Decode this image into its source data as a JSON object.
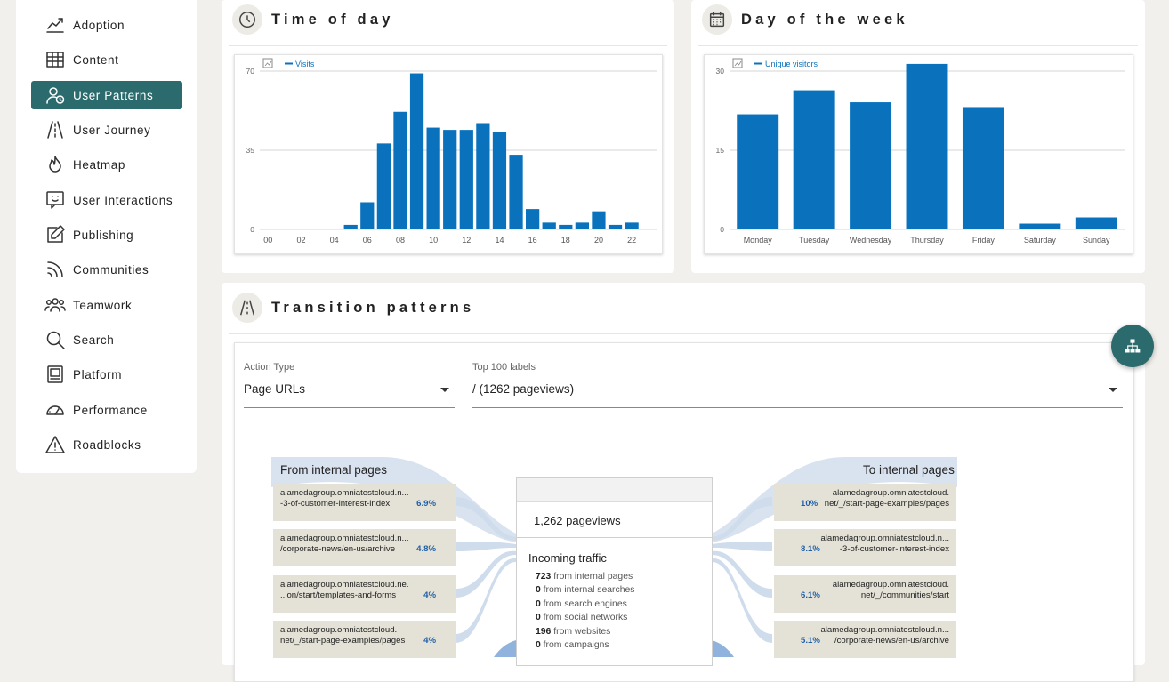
{
  "sidebar": {
    "items": [
      {
        "label": "Adoption",
        "icon": "trending-chart-icon",
        "active": false
      },
      {
        "label": "Content",
        "icon": "table-grid-icon",
        "active": false
      },
      {
        "label": "User Patterns",
        "icon": "user-clock-icon",
        "active": true
      },
      {
        "label": "User Journey",
        "icon": "road-icon",
        "active": false
      },
      {
        "label": "Heatmap",
        "icon": "flame-icon",
        "active": false
      },
      {
        "label": "User Interactions",
        "icon": "chat-smile-icon",
        "active": false
      },
      {
        "label": "Publishing",
        "icon": "edit-icon",
        "active": false
      },
      {
        "label": "Communities",
        "icon": "rss-icon",
        "active": false
      },
      {
        "label": "Teamwork",
        "icon": "people-group-icon",
        "active": false
      },
      {
        "label": "Search",
        "icon": "search-icon",
        "active": false
      },
      {
        "label": "Platform",
        "icon": "server-icon",
        "active": false
      },
      {
        "label": "Performance",
        "icon": "gauge-icon",
        "active": false
      },
      {
        "label": "Roadblocks",
        "icon": "warning-icon",
        "active": false
      }
    ]
  },
  "time_of_day": {
    "title": "Time of day",
    "icon": "clock-icon"
  },
  "day_of_week": {
    "title": "Day of the week",
    "icon": "calendar-icon"
  },
  "transition": {
    "title": "Transition patterns",
    "icon": "road-icon",
    "action_type_label": "Action Type",
    "action_type_value": "Page URLs",
    "labels_label": "Top 100 labels",
    "labels_value": "/ (1262 pageviews)",
    "from_title": "From internal pages",
    "to_title": "To internal pages",
    "from_items": [
      {
        "line1": "alamedagroup.omniatestcloud.n...",
        "line2": "-3-of-customer-interest-index",
        "pct": "6.9%"
      },
      {
        "line1": "alamedagroup.omniatestcloud.n...",
        "line2": "/corporate-news/en-us/archive",
        "pct": "4.8%"
      },
      {
        "line1": "alamedagroup.omniatestcloud.ne.",
        "line2": "..ion/start/templates-and-forms",
        "pct": "4%"
      },
      {
        "line1": "alamedagroup.omniatestcloud.",
        "line2": "net/_/start-page-examples/pages",
        "pct": "4%"
      }
    ],
    "to_items": [
      {
        "line1": "alamedagroup.omniatestcloud.",
        "line2": "net/_/start-page-examples/pages",
        "pct": "10%"
      },
      {
        "line1": "alamedagroup.omniatestcloud.n...",
        "line2": "-3-of-customer-interest-index",
        "pct": "8.1%"
      },
      {
        "line1": "alamedagroup.omniatestcloud.",
        "line2": "net/_/communities/start",
        "pct": "6.1%"
      },
      {
        "line1": "alamedagroup.omniatestcloud.n...",
        "line2": "/corporate-news/en-us/archive",
        "pct": "5.1%"
      }
    ],
    "pageviews": "1,262 pageviews",
    "incoming_title": "Incoming traffic",
    "incoming": [
      {
        "count": "723",
        "text": "from internal pages"
      },
      {
        "count": "0",
        "text": "from internal searches"
      },
      {
        "count": "0",
        "text": "from search engines"
      },
      {
        "count": "0",
        "text": "from social networks"
      },
      {
        "count": "196",
        "text": "from websites"
      },
      {
        "count": "0",
        "text": "from campaigns"
      }
    ]
  },
  "colors": {
    "accent": "#2b6b6e",
    "bar": "#0a72bd",
    "flow": "#e4e2d6",
    "flow_band": "#cfdcec"
  },
  "chart_data": [
    {
      "type": "bar",
      "legend": "Visits",
      "x_ticks": [
        "00",
        "02",
        "04",
        "06",
        "08",
        "10",
        "12",
        "14",
        "16",
        "18",
        "20",
        "22"
      ],
      "categories": [
        "00",
        "01",
        "02",
        "03",
        "04",
        "05",
        "06",
        "07",
        "08",
        "09",
        "10",
        "11",
        "12",
        "13",
        "14",
        "15",
        "16",
        "17",
        "18",
        "19",
        "20",
        "21",
        "22",
        "23"
      ],
      "values": [
        0,
        0,
        0,
        0,
        0,
        2,
        12,
        38,
        52,
        69,
        45,
        44,
        44,
        47,
        43,
        33,
        9,
        3,
        2,
        3,
        8,
        2,
        3,
        0
      ],
      "y_ticks": [
        "0",
        "35",
        "70"
      ],
      "ylim": [
        0,
        70
      ],
      "grid": true
    },
    {
      "type": "bar",
      "legend": "Unique visitors",
      "categories": [
        "Monday",
        "Tuesday",
        "Wednesday",
        "Thursday",
        "Friday",
        "Saturday",
        "Sunday"
      ],
      "values": [
        24,
        29,
        26.5,
        34.5,
        25.5,
        1.2,
        2.5
      ],
      "y_ticks": [
        "0",
        "15",
        "30"
      ],
      "ylim": [
        0,
        33
      ],
      "grid": true
    }
  ]
}
